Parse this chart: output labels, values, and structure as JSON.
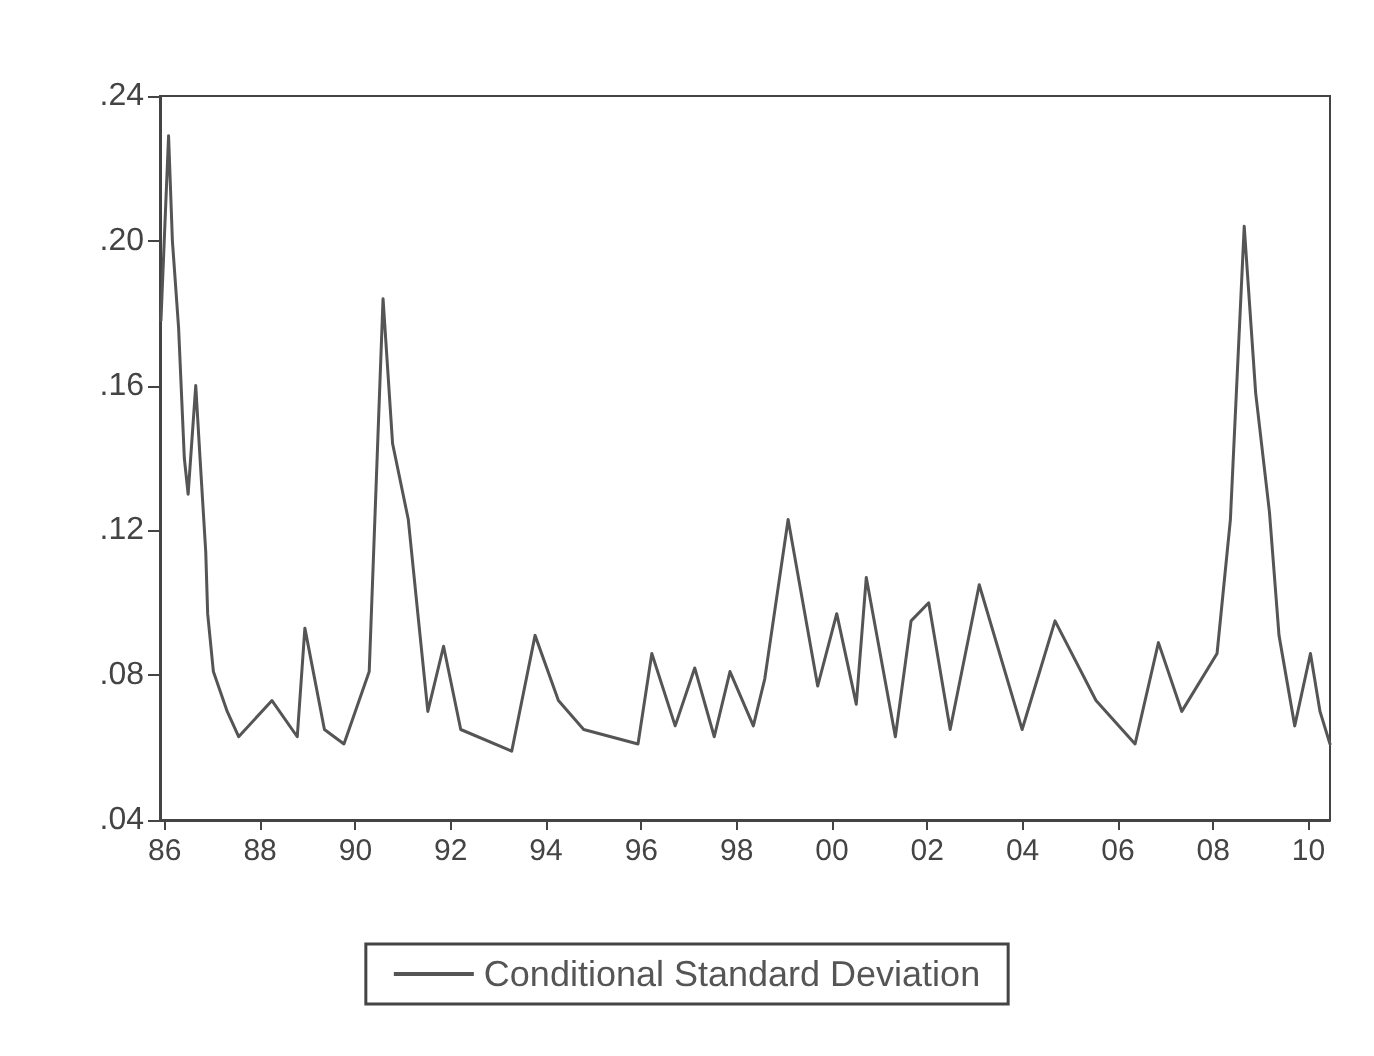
{
  "chart_data": {
    "type": "line",
    "legend": "bottom",
    "grid": false,
    "marker": "none",
    "line_style": "solid",
    "xlim": [
      1985.9,
      2010.45
    ],
    "ylim": [
      0.04,
      0.24
    ],
    "xticks": [
      {
        "value": 1986,
        "label": "86"
      },
      {
        "value": 1988,
        "label": "88"
      },
      {
        "value": 1990,
        "label": "90"
      },
      {
        "value": 1992,
        "label": "92"
      },
      {
        "value": 1994,
        "label": "94"
      },
      {
        "value": 1996,
        "label": "96"
      },
      {
        "value": 1998,
        "label": "98"
      },
      {
        "value": 2000,
        "label": "00"
      },
      {
        "value": 2002,
        "label": "02"
      },
      {
        "value": 2004,
        "label": "04"
      },
      {
        "value": 2006,
        "label": "06"
      },
      {
        "value": 2008,
        "label": "08"
      },
      {
        "value": 2010,
        "label": "10"
      }
    ],
    "yticks": [
      {
        "value": 0.04,
        "label": ".04"
      },
      {
        "value": 0.08,
        "label": ".08"
      },
      {
        "value": 0.12,
        "label": ".12"
      },
      {
        "value": 0.16,
        "label": ".16"
      },
      {
        "value": 0.2,
        "label": ".20"
      },
      {
        "value": 0.24,
        "label": ".24"
      }
    ],
    "series": [
      {
        "name": "Conditional Standard Deviation",
        "color": "#555555",
        "x": [
          1985.92,
          1986.08,
          1986.16,
          1986.29,
          1986.41,
          1986.49,
          1986.65,
          1986.74,
          1986.86,
          1986.9,
          1987.02,
          1987.31,
          1987.55,
          1988.25,
          1988.78,
          1988.94,
          1989.35,
          1989.76,
          1990.29,
          1990.58,
          1990.78,
          1991.11,
          1991.31,
          1991.52,
          1991.85,
          1992.21,
          1993.28,
          1993.77,
          1994.26,
          1994.79,
          1995.93,
          1996.22,
          1996.71,
          1997.12,
          1997.53,
          1997.86,
          1998.35,
          1998.59,
          1999.08,
          1999.7,
          2000.1,
          2000.51,
          2000.72,
          2001.33,
          2001.66,
          2002.03,
          2002.48,
          2003.09,
          2003.99,
          2004.68,
          2005.54,
          2006.36,
          2006.85,
          2007.34,
          2008.08,
          2008.36,
          2008.65,
          2008.89,
          2009.18,
          2009.38,
          2009.71,
          2010.04,
          2010.24,
          2010.45
        ],
        "values": [
          0.178,
          0.229,
          0.2,
          0.176,
          0.14,
          0.13,
          0.16,
          0.14,
          0.114,
          0.097,
          0.081,
          0.07,
          0.063,
          0.073,
          0.063,
          0.093,
          0.065,
          0.061,
          0.081,
          0.184,
          0.144,
          0.123,
          0.097,
          0.07,
          0.088,
          0.065,
          0.059,
          0.091,
          0.073,
          0.065,
          0.061,
          0.086,
          0.066,
          0.082,
          0.063,
          0.081,
          0.066,
          0.079,
          0.123,
          0.077,
          0.097,
          0.072,
          0.107,
          0.063,
          0.095,
          0.1,
          0.065,
          0.105,
          0.065,
          0.095,
          0.073,
          0.061,
          0.089,
          0.07,
          0.086,
          0.123,
          0.204,
          0.158,
          0.125,
          0.091,
          0.066,
          0.086,
          0.07,
          0.061
        ]
      }
    ]
  }
}
